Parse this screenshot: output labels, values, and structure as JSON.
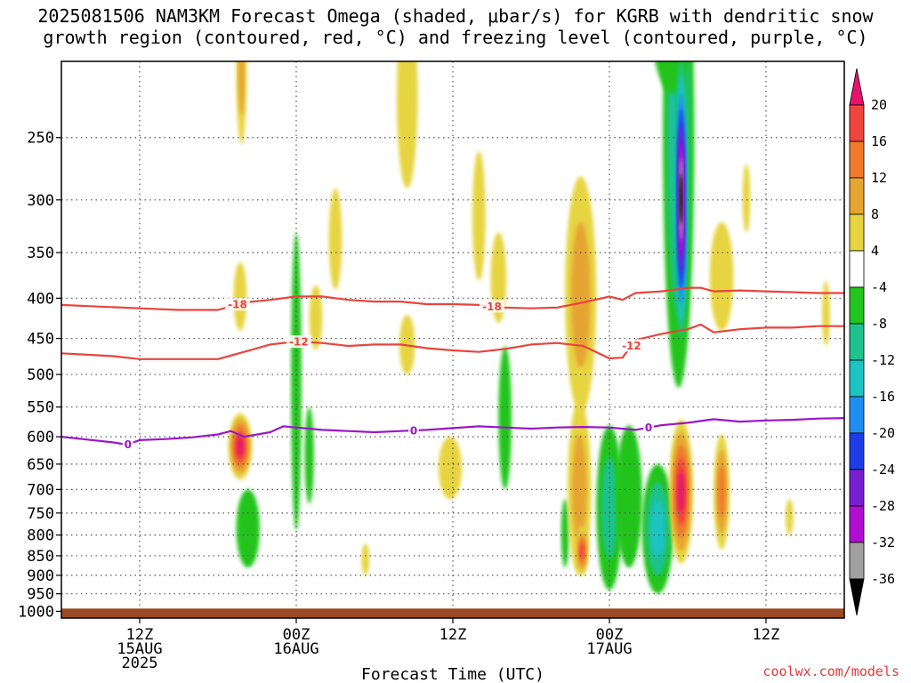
{
  "title": {
    "line1": "2025081506 NAM3KM Forecast Omega (shaded, μbar/s) for KGRB with dendritic snow",
    "line2": "growth region (contoured, red, °C) and freezing level (contoured, purple, °C)"
  },
  "credit": "coolwx.com/models",
  "chart_data": {
    "type": "area",
    "xlabel": "Forecast Time (UTC)",
    "ylabel": "",
    "x_domain_hours": [
      0,
      60
    ],
    "x_ticks": [
      {
        "hour": 6,
        "lines": [
          "12Z",
          "15AUG",
          "2025"
        ]
      },
      {
        "hour": 18,
        "lines": [
          "00Z",
          "16AUG"
        ]
      },
      {
        "hour": 30,
        "lines": [
          "12Z"
        ]
      },
      {
        "hour": 42,
        "lines": [
          "00Z",
          "17AUG"
        ]
      },
      {
        "hour": 54,
        "lines": [
          "12Z"
        ]
      }
    ],
    "y_axis_pressure_hpa": [
      250,
      300,
      350,
      400,
      450,
      500,
      550,
      600,
      650,
      700,
      750,
      800,
      850,
      900,
      950,
      1000
    ],
    "y_range_hpa": [
      200,
      1020
    ],
    "grid": true,
    "surface_color": "#9b4a23",
    "colorbar": {
      "labels": [
        "20",
        "16",
        "12",
        "8",
        "4",
        "-4",
        "-8",
        "-12",
        "-16",
        "-20",
        "-24",
        "-28",
        "-32",
        "-36"
      ],
      "colors": [
        "#e8136d",
        "#f0453c",
        "#f07a2a",
        "#e6a531",
        "#e6d440",
        "#ffffff",
        "#22c41e",
        "#1fc28c",
        "#1cc3c3",
        "#1e8ef0",
        "#1e3ce6",
        "#7a1ed2",
        "#b10ed2",
        "#a0a0a0",
        "#000000"
      ]
    },
    "contours": [
      {
        "name": "-18",
        "color": "#e8453c",
        "label": "-18",
        "points": [
          [
            0,
            408
          ],
          [
            3,
            410
          ],
          [
            6,
            412
          ],
          [
            9,
            414
          ],
          [
            12,
            414
          ],
          [
            14,
            405
          ],
          [
            16,
            402
          ],
          [
            18,
            398
          ],
          [
            20,
            398
          ],
          [
            22,
            402
          ],
          [
            24,
            404
          ],
          [
            26,
            404
          ],
          [
            28,
            407
          ],
          [
            30,
            407
          ],
          [
            32,
            408
          ],
          [
            34,
            411
          ],
          [
            36,
            412
          ],
          [
            38,
            411
          ],
          [
            40,
            405
          ],
          [
            42,
            398
          ],
          [
            43,
            402
          ],
          [
            44,
            394
          ],
          [
            46,
            392
          ],
          [
            48,
            388
          ],
          [
            49,
            388
          ],
          [
            50,
            392
          ],
          [
            52,
            391
          ],
          [
            54,
            392
          ],
          [
            56,
            393
          ],
          [
            58,
            394
          ],
          [
            60,
            394
          ]
        ],
        "label_hours": [
          13.5,
          33
        ]
      },
      {
        "name": "-12",
        "color": "#e8453c",
        "label": "-12",
        "points": [
          [
            0,
            470
          ],
          [
            2,
            472
          ],
          [
            4,
            474
          ],
          [
            6,
            478
          ],
          [
            8,
            478
          ],
          [
            10,
            478
          ],
          [
            12,
            478
          ],
          [
            14,
            468
          ],
          [
            16,
            458
          ],
          [
            18,
            454
          ],
          [
            20,
            456
          ],
          [
            22,
            460
          ],
          [
            24,
            458
          ],
          [
            26,
            458
          ],
          [
            28,
            463
          ],
          [
            30,
            466
          ],
          [
            32,
            468
          ],
          [
            34,
            464
          ],
          [
            36,
            458
          ],
          [
            38,
            456
          ],
          [
            40,
            460
          ],
          [
            42,
            477
          ],
          [
            43,
            476
          ],
          [
            44,
            452
          ],
          [
            46,
            444
          ],
          [
            48,
            438
          ],
          [
            49,
            432
          ],
          [
            50,
            442
          ],
          [
            52,
            438
          ],
          [
            54,
            436
          ],
          [
            56,
            436
          ],
          [
            58,
            434
          ],
          [
            60,
            434
          ]
        ],
        "label_hours": [
          18.2,
          43.7
        ]
      },
      {
        "name": "0",
        "color": "#9b16c8",
        "label": "0",
        "points": [
          [
            0,
            600
          ],
          [
            2,
            605
          ],
          [
            4,
            610
          ],
          [
            5,
            614
          ],
          [
            6,
            606
          ],
          [
            8,
            604
          ],
          [
            10,
            601
          ],
          [
            12,
            596
          ],
          [
            13,
            590
          ],
          [
            14,
            600
          ],
          [
            16,
            592
          ],
          [
            17,
            582
          ],
          [
            18,
            584
          ],
          [
            20,
            588
          ],
          [
            22,
            590
          ],
          [
            24,
            592
          ],
          [
            26,
            590
          ],
          [
            28,
            588
          ],
          [
            30,
            585
          ],
          [
            32,
            582
          ],
          [
            34,
            584
          ],
          [
            36,
            586
          ],
          [
            38,
            584
          ],
          [
            40,
            583
          ],
          [
            42,
            584
          ],
          [
            44,
            588
          ],
          [
            46,
            580
          ],
          [
            48,
            576
          ],
          [
            50,
            570
          ],
          [
            52,
            574
          ],
          [
            54,
            572
          ],
          [
            56,
            571
          ],
          [
            58,
            569
          ],
          [
            60,
            568
          ]
        ],
        "label_hours": [
          5.1,
          27,
          45
        ]
      }
    ],
    "omega_blobs": [
      {
        "hour": 13.7,
        "p": 620,
        "rx": 0.9,
        "rp": 60,
        "value": 22
      },
      {
        "hour": 13.7,
        "p": 400,
        "rx": 0.5,
        "rp": 40,
        "value": 6
      },
      {
        "hour": 13.8,
        "p": 210,
        "rx": 0.4,
        "rp": 45,
        "value": 8
      },
      {
        "hour": 14.3,
        "p": 790,
        "rx": 0.9,
        "rp": 90,
        "value": -7
      },
      {
        "hour": 18.0,
        "p": 560,
        "rx": 0.4,
        "rp": 230,
        "value": -7
      },
      {
        "hour": 19.0,
        "p": 640,
        "rx": 0.35,
        "rp": 90,
        "value": -6
      },
      {
        "hour": 19.5,
        "p": 425,
        "rx": 0.5,
        "rp": 40,
        "value": 5
      },
      {
        "hour": 21.0,
        "p": 340,
        "rx": 0.5,
        "rp": 50,
        "value": 6
      },
      {
        "hour": 23.3,
        "p": 860,
        "rx": 0.3,
        "rp": 40,
        "value": 7
      },
      {
        "hour": 26.5,
        "p": 230,
        "rx": 0.8,
        "rp": 60,
        "value": 5
      },
      {
        "hour": 26.5,
        "p": 460,
        "rx": 0.6,
        "rp": 40,
        "value": 5
      },
      {
        "hour": 29.8,
        "p": 660,
        "rx": 0.9,
        "rp": 60,
        "value": 6
      },
      {
        "hour": 32.0,
        "p": 320,
        "rx": 0.5,
        "rp": 60,
        "value": 5
      },
      {
        "hour": 33.5,
        "p": 380,
        "rx": 0.6,
        "rp": 50,
        "value": 5
      },
      {
        "hour": 34.0,
        "p": 580,
        "rx": 0.5,
        "rp": 120,
        "value": -7
      },
      {
        "hour": 38.6,
        "p": 800,
        "rx": 0.3,
        "rp": 80,
        "value": -6
      },
      {
        "hour": 39.8,
        "p": 420,
        "rx": 1.2,
        "rp": 140,
        "value": 10
      },
      {
        "hour": 39.7,
        "p": 720,
        "rx": 0.9,
        "rp": 180,
        "value": 8
      },
      {
        "hour": 39.9,
        "p": 840,
        "rx": 0.5,
        "rp": 60,
        "value": 16
      },
      {
        "hour": 42.0,
        "p": 760,
        "rx": 1.0,
        "rp": 180,
        "value": -10
      },
      {
        "hour": 43.5,
        "p": 730,
        "rx": 1.0,
        "rp": 150,
        "value": -7
      },
      {
        "hour": 45.7,
        "p": 800,
        "rx": 1.2,
        "rp": 150,
        "value": -13
      },
      {
        "hour": 47.3,
        "p": 320,
        "rx": 1.2,
        "rp": 200,
        "value": -12
      },
      {
        "hour": 46.8,
        "p": 160,
        "rx": 2.0,
        "rp": 60,
        "value": -7
      },
      {
        "hour": 47.5,
        "p": 330,
        "rx": 0.55,
        "rp": 140,
        "value": -36
      },
      {
        "hour": 47.5,
        "p": 720,
        "rx": 0.9,
        "rp": 150,
        "value": 22
      },
      {
        "hour": 50.6,
        "p": 715,
        "rx": 0.6,
        "rp": 120,
        "value": 14
      },
      {
        "hour": 50.6,
        "p": 380,
        "rx": 0.9,
        "rp": 60,
        "value": 7
      },
      {
        "hour": 52.5,
        "p": 300,
        "rx": 0.3,
        "rp": 30,
        "value": 5
      },
      {
        "hour": 55.8,
        "p": 760,
        "rx": 0.3,
        "rp": 40,
        "value": 5
      },
      {
        "hour": 58.6,
        "p": 420,
        "rx": 0.3,
        "rp": 40,
        "value": 5
      }
    ]
  }
}
